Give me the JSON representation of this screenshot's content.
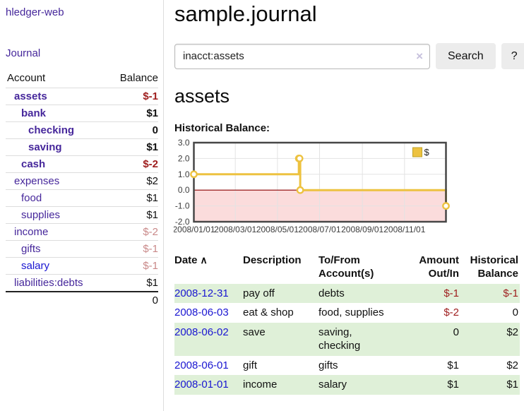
{
  "app": {
    "title": "hledger-web"
  },
  "sidebar": {
    "journal_link": "Journal",
    "accounts_table": {
      "account_header": "Account",
      "balance_header": "Balance",
      "rows": [
        {
          "name": "assets",
          "depth": 1,
          "balance": "$-1",
          "bold": true,
          "balance_tone": "neg-strong",
          "name_tone": "purple"
        },
        {
          "name": "bank",
          "depth": 2,
          "balance": "$1",
          "bold": true,
          "balance_tone": "pos",
          "name_tone": "purple"
        },
        {
          "name": "checking",
          "depth": 3,
          "balance": "0",
          "bold": true,
          "balance_tone": "pos",
          "name_tone": "purple"
        },
        {
          "name": "saving",
          "depth": 3,
          "balance": "$1",
          "bold": true,
          "balance_tone": "pos",
          "name_tone": "purple"
        },
        {
          "name": "cash",
          "depth": 2,
          "balance": "$-2",
          "bold": true,
          "balance_tone": "neg-strong",
          "name_tone": "purple"
        },
        {
          "name": "expenses",
          "depth": 1,
          "balance": "$2",
          "bold": false,
          "balance_tone": "pos",
          "name_tone": "purple"
        },
        {
          "name": "food",
          "depth": 2,
          "balance": "$1",
          "bold": false,
          "balance_tone": "pos",
          "name_tone": "purple"
        },
        {
          "name": "supplies",
          "depth": 2,
          "balance": "$1",
          "bold": false,
          "balance_tone": "pos",
          "name_tone": "purple"
        },
        {
          "name": "income",
          "depth": 1,
          "balance": "$-2",
          "bold": false,
          "balance_tone": "neg-muted",
          "name_tone": "purple"
        },
        {
          "name": "gifts",
          "depth": 2,
          "balance": "$-1",
          "bold": false,
          "balance_tone": "neg-muted",
          "name_tone": "purple"
        },
        {
          "name": "salary",
          "depth": 2,
          "balance": "$-1",
          "bold": false,
          "balance_tone": "neg-muted",
          "name_tone": "blue"
        },
        {
          "name": "liabilities:debts",
          "depth": 1,
          "balance": "$1",
          "bold": false,
          "balance_tone": "pos",
          "name_tone": "purple"
        }
      ],
      "total": "0"
    }
  },
  "header": {
    "title": "sample.journal"
  },
  "search": {
    "value": "inacct:assets",
    "clear_icon": "×",
    "button_label": "Search",
    "help_label": "?"
  },
  "account_page": {
    "heading": "assets",
    "chart_label": "Historical Balance:"
  },
  "chart_data": {
    "type": "line",
    "title": "Historical Balance:",
    "steps": true,
    "series": [
      {
        "name": "$",
        "color": "#edc240",
        "points": [
          [
            "2008-01-01",
            1
          ],
          [
            "2008-06-01",
            2
          ],
          [
            "2008-06-02",
            2
          ],
          [
            "2008-06-03",
            0
          ],
          [
            "2008-12-31",
            -1
          ]
        ]
      }
    ],
    "x_range": [
      "2008-01-01",
      "2008-12-31"
    ],
    "ylim": [
      -2,
      3
    ],
    "y_ticks": [
      3.0,
      2.0,
      1.0,
      0.0,
      -1.0,
      -2.0
    ],
    "x_ticks": [
      {
        "label": "2008/01/01",
        "date": "2008-01-01"
      },
      {
        "label": "2008/03/01",
        "date": "2008-03-01"
      },
      {
        "label": "2008/05/01",
        "date": "2008-05-01"
      },
      {
        "label": "2008/07/01",
        "date": "2008-07-01"
      },
      {
        "label": "2008/09/01",
        "date": "2008-09-01"
      },
      {
        "label": "2008/11/01",
        "date": "2008-11-01"
      }
    ],
    "legend": {
      "label": "$",
      "position": "top-right"
    },
    "grid": true,
    "colors": {
      "negative_fill": "#fbdcdc",
      "zero_line": "#8b0000",
      "grid_line": "#e3e3e3",
      "border": "#474747",
      "tick_text": "#3c3c3c"
    }
  },
  "register": {
    "headers": {
      "date": "Date",
      "sort_icon": "∧",
      "description": "Description",
      "accounts": "To/From Account(s)",
      "amount": "Amount Out/In",
      "balance": "Historical Balance"
    },
    "rows": [
      {
        "date": "2008-12-31",
        "description": "pay off",
        "accounts": "debts",
        "amount": "$-1",
        "amount_neg": true,
        "balance": "$-1",
        "balance_neg": true
      },
      {
        "date": "2008-06-03",
        "description": "eat & shop",
        "accounts": "food, supplies",
        "amount": "$-2",
        "amount_neg": true,
        "balance": "0",
        "balance_neg": false
      },
      {
        "date": "2008-06-02",
        "description": "save",
        "accounts": "saving, checking",
        "amount": "0",
        "amount_neg": false,
        "balance": "$2",
        "balance_neg": false
      },
      {
        "date": "2008-06-01",
        "description": "gift",
        "accounts": "gifts",
        "amount": "$1",
        "amount_neg": false,
        "balance": "$2",
        "balance_neg": false
      },
      {
        "date": "2008-01-01",
        "description": "income",
        "accounts": "salary",
        "amount": "$1",
        "amount_neg": false,
        "balance": "$1",
        "balance_neg": false
      }
    ]
  },
  "colors": {
    "link_purple": "#46279b",
    "link_blue": "#1a16d1",
    "negative_strong": "#9e1d1d",
    "negative_muted": "#c98989",
    "row_stripe_green": "#dff0d8",
    "series_yellow": "#edc240"
  }
}
